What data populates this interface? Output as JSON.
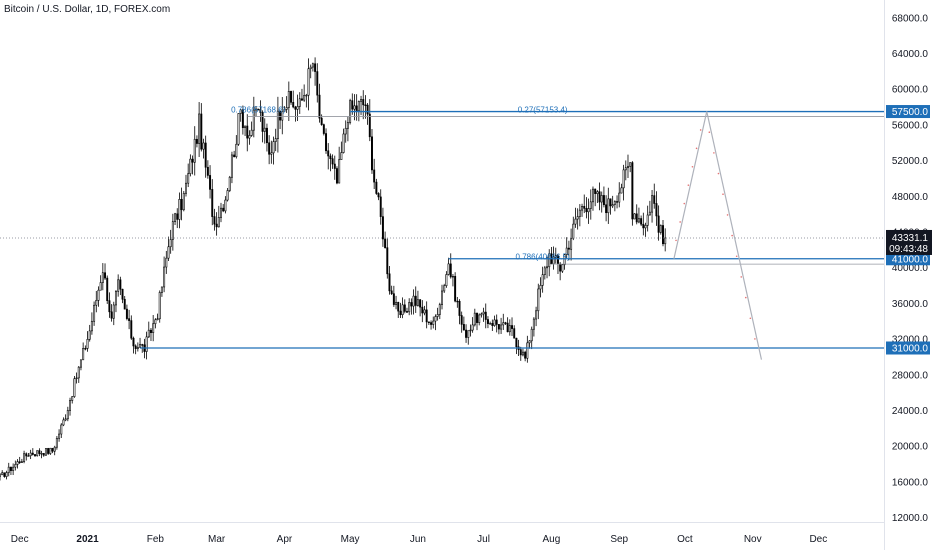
{
  "header": {
    "title": "Bitcoin / U.S. Dollar, 1D, FOREX.com"
  },
  "colors": {
    "up": "#ffffff",
    "down": "#000000",
    "wick": "#000000",
    "level": "#1e6fb8",
    "fib": "#1e6fb8",
    "projection": "#aeb2bb",
    "projection_marks": "#e57373",
    "tag_blue": "#1e6fb8",
    "tag_dark": "#131722",
    "grid": "#f0f3fa"
  },
  "chart_data": {
    "type": "candlestick",
    "title": "Bitcoin / U.S. Dollar, 1D, FOREX.com",
    "x_tick_labels": [
      "Dec",
      "2021",
      "Feb",
      "Mar",
      "Apr",
      "May",
      "Jun",
      "Jul",
      "Aug",
      "Sep",
      "Oct",
      "Nov",
      "Dec"
    ],
    "y_tick_labels": [
      "12000.0",
      "16000.0",
      "20000.0",
      "24000.0",
      "28000.0",
      "32000.0",
      "36000.0",
      "40000.0",
      "44000.0",
      "48000.0",
      "52000.0",
      "56000.0",
      "60000.0",
      "64000.0",
      "68000.0"
    ],
    "ylim": [
      11500,
      70000
    ],
    "xlim": [
      "2020-11-22",
      "2021-12-31"
    ],
    "grid": false,
    "anchors": [
      [
        "2020-11-22",
        16500
      ],
      [
        "2020-12-05",
        19200
      ],
      [
        "2020-12-16",
        19500
      ],
      [
        "2020-12-22",
        23500
      ],
      [
        "2021-01-02",
        33000
      ],
      [
        "2021-01-08",
        40000
      ],
      [
        "2021-01-12",
        34000
      ],
      [
        "2021-01-15",
        38000
      ],
      [
        "2021-01-22",
        31500
      ],
      [
        "2021-01-27",
        31000
      ],
      [
        "2021-02-02",
        35000
      ],
      [
        "2021-02-08",
        44000
      ],
      [
        "2021-02-14",
        48000
      ],
      [
        "2021-02-21",
        56000
      ],
      [
        "2021-02-28",
        45000
      ],
      [
        "2021-03-05",
        48000
      ],
      [
        "2021-03-12",
        57500
      ],
      [
        "2021-03-16",
        55000
      ],
      [
        "2021-03-20",
        58000
      ],
      [
        "2021-03-25",
        52500
      ],
      [
        "2021-03-31",
        58800
      ],
      [
        "2021-04-08",
        58000
      ],
      [
        "2021-04-14",
        63000
      ],
      [
        "2021-04-18",
        55000
      ],
      [
        "2021-04-25",
        49500
      ],
      [
        "2021-04-30",
        57500
      ],
      [
        "2021-05-08",
        58500
      ],
      [
        "2021-05-12",
        50000
      ],
      [
        "2021-05-16",
        44000
      ],
      [
        "2021-05-19",
        38000
      ],
      [
        "2021-05-23",
        34500
      ],
      [
        "2021-05-30",
        36500
      ],
      [
        "2021-06-08",
        33500
      ],
      [
        "2021-06-15",
        40500
      ],
      [
        "2021-06-22",
        32500
      ],
      [
        "2021-06-28",
        34500
      ],
      [
        "2021-07-05",
        34000
      ],
      [
        "2021-07-14",
        32800
      ],
      [
        "2021-07-20",
        29800
      ],
      [
        "2021-07-26",
        37000
      ],
      [
        "2021-07-31",
        41500
      ],
      [
        "2021-08-05",
        40000
      ],
      [
        "2021-08-14",
        46500
      ],
      [
        "2021-08-20",
        48000
      ],
      [
        "2021-08-27",
        47000
      ],
      [
        "2021-09-01",
        48800
      ],
      [
        "2021-09-06",
        51800
      ],
      [
        "2021-09-07",
        46500
      ],
      [
        "2021-09-13",
        44800
      ],
      [
        "2021-09-16",
        48000
      ],
      [
        "2021-09-21",
        42800
      ],
      [
        "2021-09-22",
        43331.1
      ]
    ],
    "last_price": "43331.1",
    "countdown": "09:43:48",
    "levels": [
      {
        "label": "57500.0",
        "value": 57500,
        "from": "2021-05-01"
      },
      {
        "label": "41000.0",
        "value": 41000,
        "from": "2021-06-15"
      },
      {
        "label": "31000.0",
        "value": 31000,
        "from": "2021-01-25"
      }
    ],
    "fib_labels": [
      {
        "text": "0.786(57168.6)",
        "value": 57168.6,
        "date": "2021-03-20"
      },
      {
        "text": "0.27(57153.4)",
        "value": 57153.4,
        "date": "2021-07-28"
      },
      {
        "text": "0.786(40666.5)",
        "value": 40666.5,
        "date": "2021-07-28"
      }
    ],
    "projection": [
      [
        "2021-09-26",
        41000
      ],
      [
        "2021-10-11",
        57500
      ],
      [
        "2021-11-05",
        29700
      ]
    ]
  }
}
